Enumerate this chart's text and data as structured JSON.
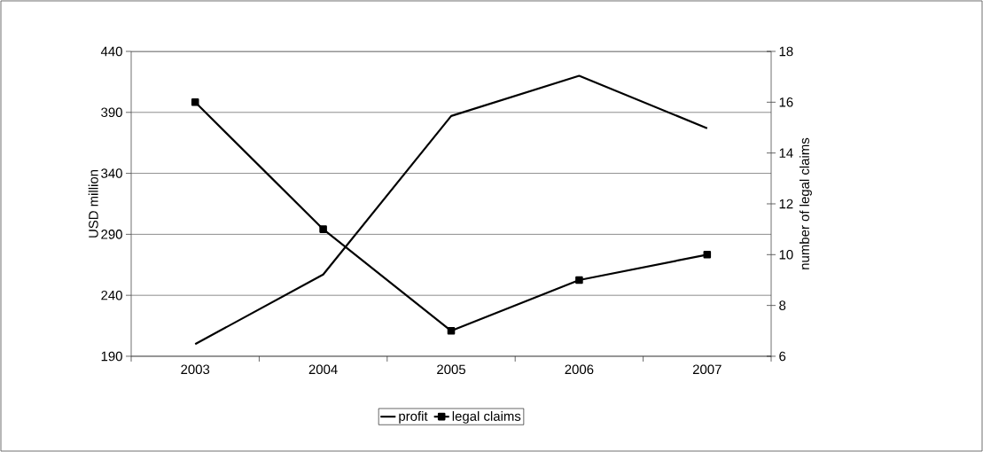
{
  "chart_data": {
    "type": "line",
    "categories": [
      "2003",
      "2004",
      "2005",
      "2006",
      "2007"
    ],
    "ylabel": "USD million",
    "y2label": "number of legal claims",
    "series": [
      {
        "name": "profit",
        "color": "#000000",
        "marker": "none",
        "values": [
          200,
          257,
          387,
          420,
          377
        ]
      },
      {
        "name": "legal claims",
        "color": "#000000",
        "marker": "square",
        "axis": "y2",
        "values": [
          16,
          11,
          7,
          9,
          10
        ]
      }
    ],
    "ylim": [
      190,
      440
    ],
    "yticks": [
      190,
      240,
      290,
      340,
      390,
      440
    ],
    "y2lim": [
      6,
      18
    ],
    "y2ticks": [
      6,
      8,
      10,
      12,
      14,
      16,
      18
    ],
    "grid": "y",
    "legend": "bottom"
  }
}
